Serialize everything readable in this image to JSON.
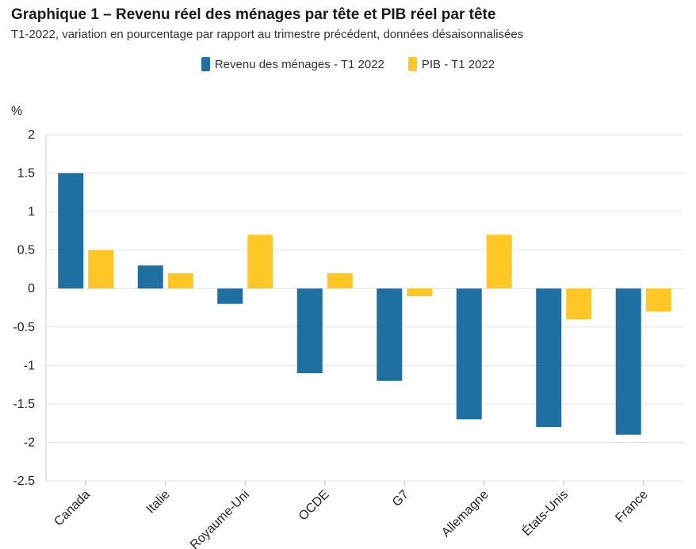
{
  "chart_data": {
    "type": "bar",
    "title": "Graphique 1 – Revenu réel des ménages par tête et PIB réel par tête",
    "subtitle": "T1-2022, variation en pourcentage par rapport au trimestre précédent, données désaisonnalisées",
    "ylabel": "%",
    "xlabel": "",
    "ylim": [
      -2.5,
      2
    ],
    "yticks": [
      "2",
      "1.5",
      "1",
      "0.5",
      "0",
      "-0.5",
      "-1",
      "-1.5",
      "-2",
      "-2.5"
    ],
    "ytick_values": [
      2,
      1.5,
      1,
      0.5,
      0,
      -0.5,
      -1,
      -1.5,
      -2,
      -2.5
    ],
    "grid": true,
    "legend_position": "top-center",
    "categories": [
      "Canada",
      "Italie",
      "Royaume-Uni",
      "OCDE",
      "G7",
      "Allemagne",
      "États-Unis",
      "France"
    ],
    "series": [
      {
        "name": "Revenu des ménages - T1 2022",
        "color": "#1f6fa3",
        "values": [
          1.5,
          0.3,
          -0.2,
          -1.1,
          -1.2,
          -1.7,
          -1.8,
          -1.9
        ]
      },
      {
        "name": "PIB - T1 2022",
        "color": "#ffc726",
        "values": [
          0.5,
          0.2,
          0.7,
          0.2,
          -0.1,
          0.7,
          -0.4,
          -0.3
        ]
      }
    ]
  }
}
